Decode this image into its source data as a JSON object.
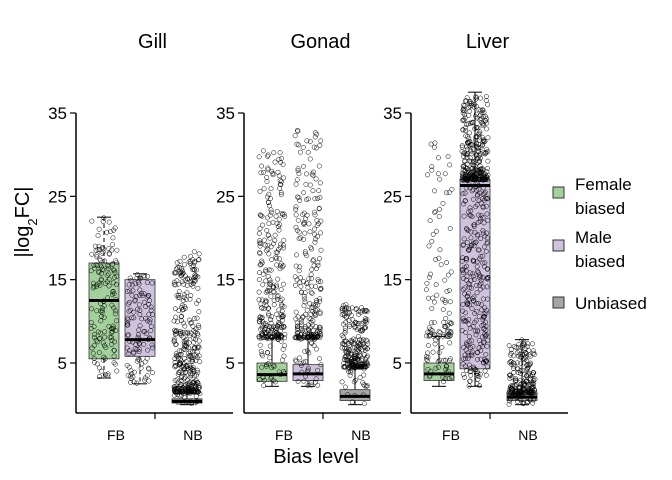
{
  "chart_data": {
    "type": "box",
    "xlabel": "Bias level",
    "ylabel": "|log2FC|",
    "ylabel_main": "|log",
    "ylabel_sub": "2",
    "ylabel_rest": "FC|",
    "ylim": [
      0,
      35
    ],
    "yticks": [
      5,
      15,
      25,
      35
    ],
    "xtick_labels": [
      "FB",
      "NB"
    ],
    "legend": {
      "placement": "right",
      "items": [
        {
          "key": "female",
          "line1": "Female",
          "line2": "biased",
          "color": "#a3d19c"
        },
        {
          "key": "male",
          "line1": "Male",
          "line2": "biased",
          "color": "#cfc2de"
        },
        {
          "key": "unbiased",
          "line1": "Unbiased",
          "line2": "",
          "color": "#a6a6a6"
        }
      ]
    },
    "panels": [
      {
        "title": "Gill",
        "boxes": [
          {
            "group": "female",
            "min": 3.2,
            "q1": 5.5,
            "median": 12.5,
            "q3": 17,
            "max": 22.5,
            "whisker_style": "dashed",
            "outlier_min": 0,
            "outlier_max": 0,
            "n_outliers": 0,
            "scatter_max": 22.5
          },
          {
            "group": "male",
            "min": 2.5,
            "q1": 5.8,
            "median": 7.8,
            "q3": 15,
            "max": 15.7,
            "whisker_style": "dashed",
            "outlier_min": 0,
            "outlier_max": 0,
            "n_outliers": 0,
            "scatter_max": 15.7
          },
          {
            "group": "unbiased",
            "min": 0,
            "q1": 0.2,
            "median": 0.4,
            "q3": 0.7,
            "max": 1.5,
            "whisker_style": "solid",
            "outlier_min": 1.5,
            "outlier_max": 18.5,
            "n_outliers": 350,
            "scatter_max": 1.5
          }
        ]
      },
      {
        "title": "Gonad",
        "boxes": [
          {
            "group": "female",
            "min": 2.2,
            "q1": 2.8,
            "median": 3.6,
            "q3": 5,
            "max": 8,
            "whisker_style": "solid",
            "outlier_min": 8,
            "outlier_max": 30.5,
            "n_outliers": 260,
            "scatter_max": 8
          },
          {
            "group": "male",
            "min": 2.2,
            "q1": 2.9,
            "median": 3.7,
            "q3": 4.8,
            "max": 8,
            "whisker_style": "solid",
            "outlier_min": 8,
            "outlier_max": 33.5,
            "n_outliers": 240,
            "scatter_max": 8
          },
          {
            "group": "unbiased",
            "min": 0,
            "q1": 0.5,
            "median": 1,
            "q3": 1.8,
            "max": 4.5,
            "whisker_style": "solid",
            "outlier_min": 4.5,
            "outlier_max": 12,
            "n_outliers": 220,
            "scatter_max": 4.5
          }
        ]
      },
      {
        "title": "Liver",
        "boxes": [
          {
            "group": "female",
            "min": 2.2,
            "q1": 2.9,
            "median": 3.7,
            "q3": 5,
            "max": 8.2,
            "whisker_style": "solid",
            "outlier_min": 8.2,
            "outlier_max": 32.5,
            "n_outliers": 90,
            "scatter_max": 8.2
          },
          {
            "group": "male",
            "min": 2.2,
            "q1": 4.3,
            "median": 26.3,
            "q3": 27,
            "max": 37.5,
            "whisker_style": "solid",
            "outlier_min": 27,
            "outlier_max": 37,
            "n_outliers": 300,
            "scatter_max": 27
          },
          {
            "group": "unbiased",
            "min": 0,
            "q1": 0.5,
            "median": 0.9,
            "q3": 1.4,
            "max": 7.8,
            "whisker_style": "solid",
            "outlier_min": 1.4,
            "outlier_max": 7.8,
            "n_outliers": 200,
            "scatter_max": 1.4
          }
        ]
      }
    ]
  }
}
